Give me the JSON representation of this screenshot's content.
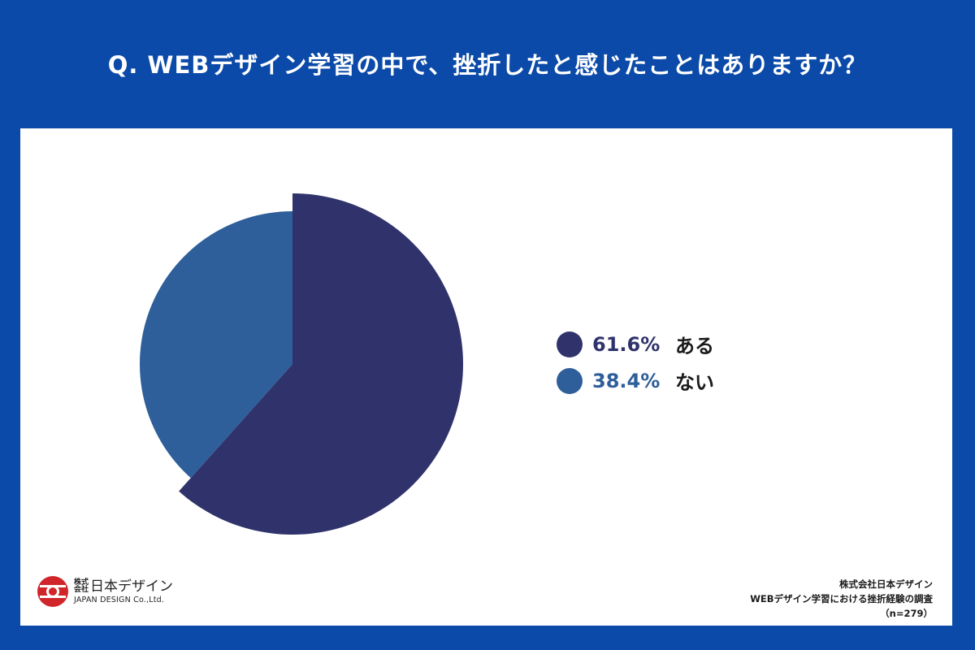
{
  "header": {
    "title": "Q. WEBデザイン学習の中で、挫折したと感じたことはありますか？"
  },
  "chart_data": {
    "type": "pie",
    "title": "Q. WEBデザイン学習の中で、挫折したと感じたことはありますか？",
    "categories": [
      "ある",
      "ない"
    ],
    "values": [
      61.6,
      38.4
    ],
    "value_labels": [
      "61.6%",
      "38.4%"
    ],
    "colors": [
      "#30336b",
      "#2e5f9a"
    ],
    "legend": "right"
  },
  "legend": {
    "items": [
      {
        "pct": "61.6%",
        "label": "ある"
      },
      {
        "pct": "38.4%",
        "label": "ない"
      }
    ]
  },
  "logo": {
    "kk": "株式会社",
    "name": "日本デザイン",
    "en": "JAPAN DESIGN Co.,Ltd."
  },
  "source": {
    "line1": "株式会社日本デザイン",
    "line2": "WEBデザイン学習における挫折経験の調査",
    "line3": "（n=279）"
  },
  "colors": {
    "background": "#0b4aa8",
    "panel": "#ffffff",
    "logo_red": "#d0262a"
  }
}
